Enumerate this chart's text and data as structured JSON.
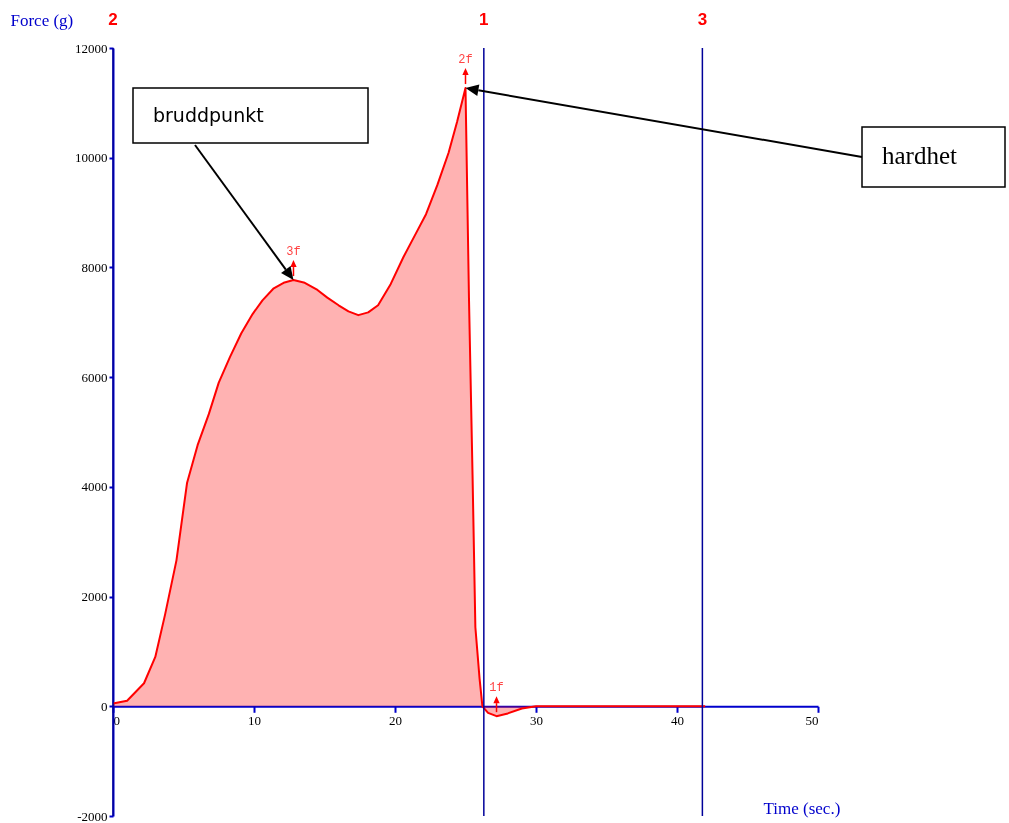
{
  "chart_data": {
    "type": "area",
    "xlabel": "Time (sec.)",
    "ylabel": "Force    (g)",
    "x": [
      0,
      1,
      2.2,
      3,
      3.7,
      4.5,
      5.25,
      6,
      6.8,
      7.5,
      8.3,
      9.1,
      9.9,
      10.6,
      11.4,
      12.1,
      12.8,
      13.6,
      14.5,
      15.2,
      16.0,
      16.7,
      17.4,
      18.1,
      18.8,
      19.7,
      20.6,
      21.4,
      22.2,
      23,
      23.8,
      24.4,
      25.0,
      25.25,
      25.5,
      25.7,
      26.0,
      26.2,
      26.6,
      27.2,
      28,
      29,
      30,
      35,
      42
    ],
    "series": [
      {
        "color": "#ff0000",
        "values": [
          50,
          100,
          420,
          900,
          1680,
          2660,
          4070,
          4760,
          5330,
          5900,
          6370,
          6800,
          7150,
          7400,
          7620,
          7720,
          7770,
          7720,
          7590,
          7450,
          7310,
          7200,
          7130,
          7180,
          7310,
          7700,
          8190,
          8580,
          8970,
          9500,
          10090,
          10650,
          11270,
          7390,
          4210,
          1440,
          500,
          0,
          -120,
          -180,
          -130,
          -40,
          0,
          0,
          0
        ]
      }
    ],
    "xlim": [
      0,
      50
    ],
    "xticks": [
      0,
      10,
      20,
      30,
      40,
      50
    ],
    "ylim": [
      -2000,
      12000
    ],
    "yticks": [
      -2000,
      0,
      2000,
      4000,
      6000,
      8000,
      10000,
      12000
    ],
    "ref_lines": [
      {
        "axis": "x",
        "value": 0,
        "color": "#000099"
      },
      {
        "axis": "x",
        "value": 26.3,
        "color": "#000099"
      },
      {
        "axis": "x",
        "value": 41.8,
        "color": "#000099"
      }
    ],
    "annotations": [
      {
        "text": "3f",
        "x": 12.8,
        "y": 7770
      },
      {
        "text": "2f",
        "x": 25.0,
        "y": 11270
      },
      {
        "text": "1f",
        "x": 27.2,
        "y": -180
      },
      "bruddpunkt",
      "hardhet",
      "2",
      "1",
      "3"
    ],
    "grid": false
  }
}
